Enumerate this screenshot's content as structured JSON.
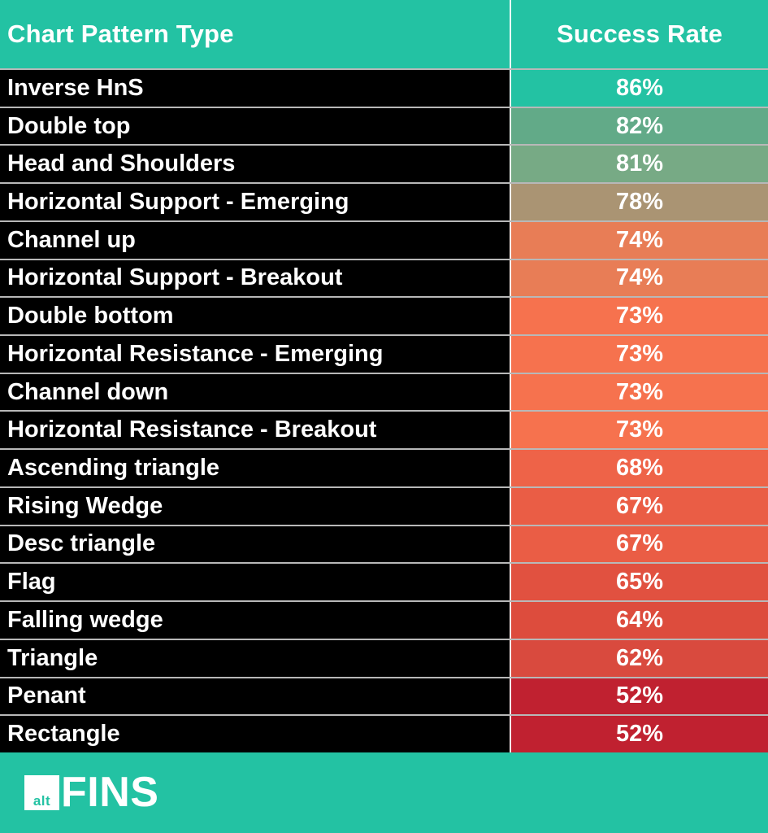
{
  "brand_color": "#23c2a3",
  "header": {
    "col_pattern": "Chart Pattern Type",
    "col_rate": "Success Rate"
  },
  "rows": [
    {
      "pattern": "Inverse HnS",
      "rate": "86%",
      "bg": "#23c2a3"
    },
    {
      "pattern": "Double top",
      "rate": "82%",
      "bg": "#62aa88"
    },
    {
      "pattern": "Head and Shoulders",
      "rate": "81%",
      "bg": "#77aa85"
    },
    {
      "pattern": "Horizontal Support - Emerging",
      "rate": "78%",
      "bg": "#aa9473"
    },
    {
      "pattern": "Channel up",
      "rate": "74%",
      "bg": "#e87d56"
    },
    {
      "pattern": "Horizontal Support - Breakout",
      "rate": "74%",
      "bg": "#e87d56"
    },
    {
      "pattern": "Double bottom",
      "rate": "73%",
      "bg": "#f6724e"
    },
    {
      "pattern": "Horizontal Resistance - Emerging",
      "rate": "73%",
      "bg": "#f6724e"
    },
    {
      "pattern": "Channel down",
      "rate": "73%",
      "bg": "#f6724e"
    },
    {
      "pattern": "Horizontal Resistance - Breakout",
      "rate": "73%",
      "bg": "#f6724e"
    },
    {
      "pattern": "Ascending triangle",
      "rate": "68%",
      "bg": "#ee6348"
    },
    {
      "pattern": "Rising Wedge",
      "rate": "67%",
      "bg": "#ea5d45"
    },
    {
      "pattern": "Desc triangle",
      "rate": "67%",
      "bg": "#ea5d45"
    },
    {
      "pattern": "Flag",
      "rate": "65%",
      "bg": "#e15140"
    },
    {
      "pattern": "Falling wedge",
      "rate": "64%",
      "bg": "#dd4c3d"
    },
    {
      "pattern": "Triangle",
      "rate": "62%",
      "bg": "#d94a3e"
    },
    {
      "pattern": "Penant",
      "rate": "52%",
      "bg": "#c02130"
    },
    {
      "pattern": "Rectangle",
      "rate": "52%",
      "bg": "#c02130"
    }
  ],
  "footer": {
    "logo_square_text": "alt",
    "logo_text": "FINS"
  },
  "chart_data": {
    "type": "table",
    "title": "Chart Pattern Type vs Success Rate",
    "columns": [
      "Chart Pattern Type",
      "Success Rate"
    ],
    "categories": [
      "Inverse HnS",
      "Double top",
      "Head and Shoulders",
      "Horizontal Support - Emerging",
      "Channel up",
      "Horizontal Support - Breakout",
      "Double bottom",
      "Horizontal Resistance - Emerging",
      "Channel down",
      "Horizontal Resistance - Breakout",
      "Ascending triangle",
      "Rising Wedge",
      "Desc triangle",
      "Flag",
      "Falling wedge",
      "Triangle",
      "Penant",
      "Rectangle"
    ],
    "values": [
      86,
      82,
      81,
      78,
      74,
      74,
      73,
      73,
      73,
      73,
      68,
      67,
      67,
      65,
      64,
      62,
      52,
      52
    ],
    "value_unit": "%",
    "layout_hints": {
      "sort": "descending by success rate",
      "cell_color_scale": "teal/green for high rates through orange to dark red for low rates",
      "pattern_column_bg": "#000000",
      "header_bg": "#23c2a3"
    }
  }
}
